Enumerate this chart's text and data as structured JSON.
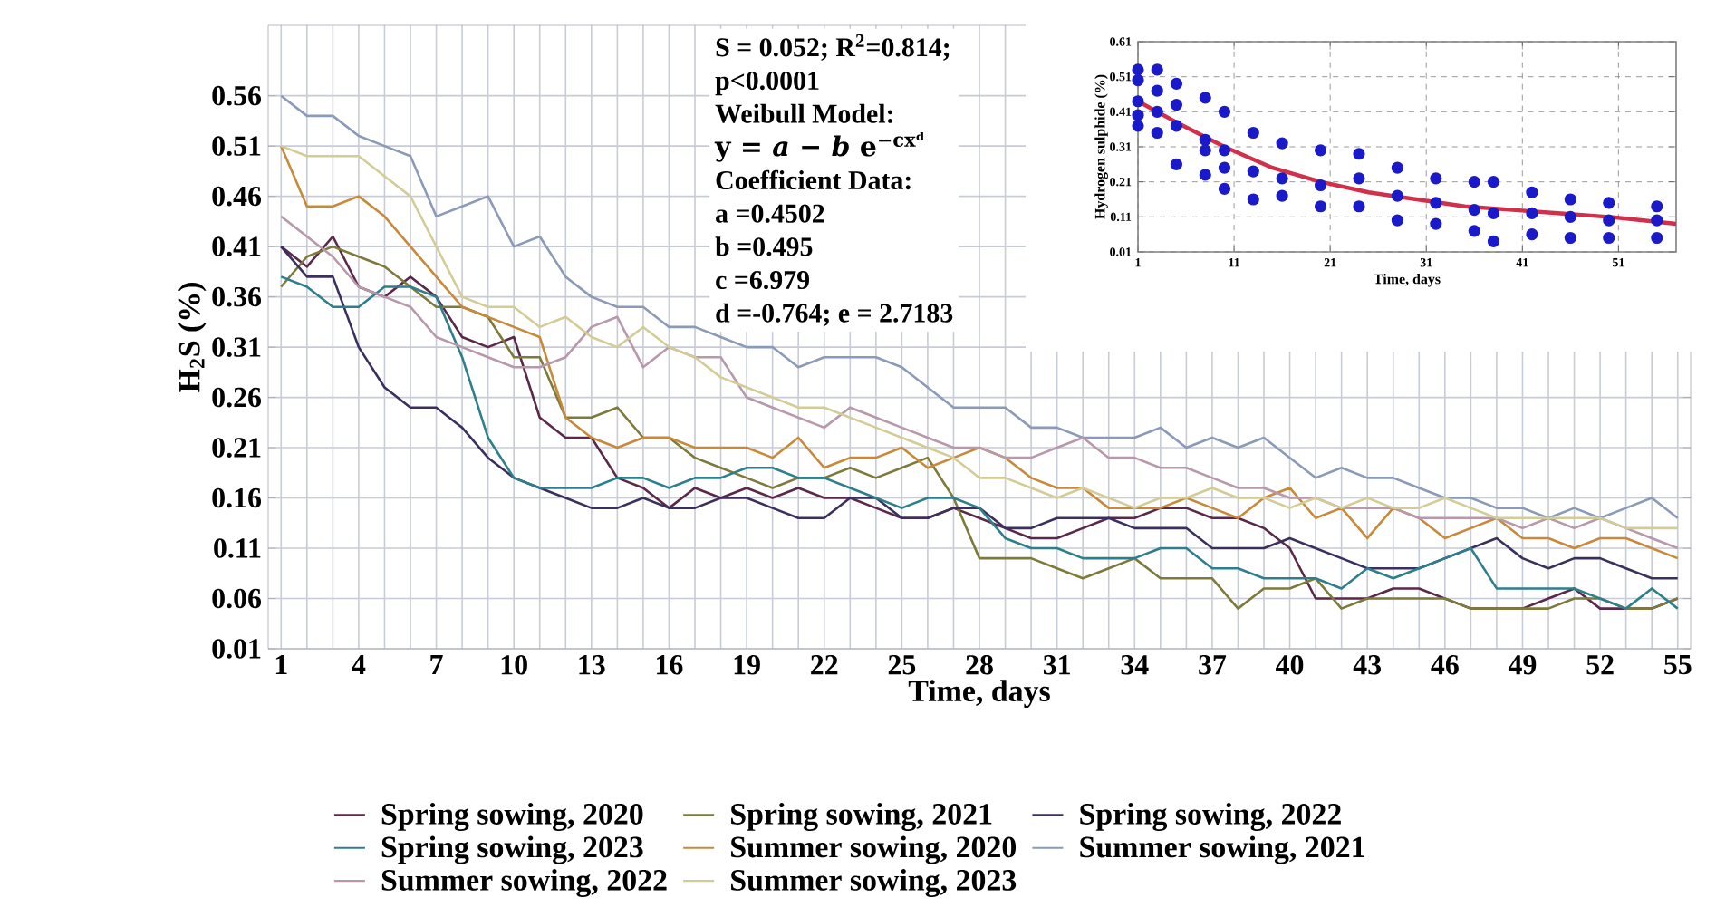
{
  "chart_data": [
    {
      "type": "line",
      "xlabel": "Time, days",
      "ylabel": "H$_{2}$S (%)",
      "x": [
        1,
        2,
        3,
        4,
        5,
        6,
        7,
        8,
        9,
        10,
        11,
        12,
        13,
        14,
        15,
        16,
        17,
        18,
        19,
        20,
        21,
        22,
        23,
        24,
        25,
        26,
        27,
        28,
        29,
        30,
        31,
        32,
        33,
        34,
        35,
        36,
        37,
        38,
        39,
        40,
        41,
        42,
        43,
        44,
        45,
        46,
        47,
        48,
        49,
        50,
        51,
        52,
        53,
        54,
        55
      ],
      "series": [
        {
          "name": "Spring sowing, 2020",
          "color": "#5a2848",
          "values": [
            0.41,
            0.39,
            0.42,
            0.37,
            0.36,
            0.38,
            0.36,
            0.32,
            0.31,
            0.32,
            0.24,
            0.22,
            0.22,
            0.18,
            0.17,
            0.15,
            0.17,
            0.16,
            0.17,
            0.16,
            0.17,
            0.16,
            0.16,
            0.15,
            0.14,
            0.14,
            0.15,
            0.14,
            0.13,
            0.12,
            0.12,
            0.13,
            0.14,
            0.14,
            0.15,
            0.15,
            0.14,
            0.14,
            0.13,
            0.11,
            0.06,
            0.06,
            0.06,
            0.07,
            0.07,
            0.06,
            0.05,
            0.05,
            0.05,
            0.06,
            0.07,
            0.05,
            0.05,
            0.05,
            0.06
          ]
        },
        {
          "name": "Spring sowing, 2021",
          "color": "#7d7a3c",
          "values": [
            0.37,
            0.4,
            0.41,
            0.4,
            0.39,
            0.37,
            0.35,
            0.35,
            0.34,
            0.3,
            0.3,
            0.24,
            0.24,
            0.25,
            0.22,
            0.22,
            0.2,
            0.19,
            0.18,
            0.17,
            0.18,
            0.18,
            0.19,
            0.18,
            0.19,
            0.2,
            0.16,
            0.1,
            0.1,
            0.1,
            0.09,
            0.08,
            0.09,
            0.1,
            0.08,
            0.08,
            0.08,
            0.05,
            0.07,
            0.07,
            0.08,
            0.05,
            0.06,
            0.06,
            0.06,
            0.06,
            0.05,
            0.05,
            0.05,
            0.05,
            0.06,
            0.06,
            0.05,
            0.05,
            0.06
          ]
        },
        {
          "name": "Spring sowing, 2022",
          "color": "#3b2f5e",
          "values": [
            0.41,
            0.38,
            0.38,
            0.31,
            0.27,
            0.25,
            0.25,
            0.23,
            0.2,
            0.18,
            0.17,
            0.16,
            0.15,
            0.15,
            0.16,
            0.15,
            0.15,
            0.16,
            0.16,
            0.15,
            0.14,
            0.14,
            0.16,
            0.16,
            0.14,
            0.14,
            0.15,
            0.15,
            0.13,
            0.13,
            0.14,
            0.14,
            0.14,
            0.13,
            0.13,
            0.13,
            0.11,
            0.11,
            0.11,
            0.12,
            0.11,
            0.1,
            0.09,
            0.09,
            0.09,
            0.1,
            0.11,
            0.12,
            0.1,
            0.09,
            0.1,
            0.1,
            0.09,
            0.08,
            0.08
          ]
        },
        {
          "name": "Spring sowing, 2023",
          "color": "#2e7f8c",
          "values": [
            0.38,
            0.37,
            0.35,
            0.35,
            0.37,
            0.37,
            0.36,
            0.3,
            0.22,
            0.18,
            0.17,
            0.17,
            0.17,
            0.18,
            0.18,
            0.17,
            0.18,
            0.18,
            0.19,
            0.19,
            0.18,
            0.18,
            0.17,
            0.16,
            0.15,
            0.16,
            0.16,
            0.15,
            0.12,
            0.11,
            0.11,
            0.1,
            0.1,
            0.1,
            0.11,
            0.11,
            0.09,
            0.09,
            0.08,
            0.08,
            0.08,
            0.07,
            0.09,
            0.08,
            0.09,
            0.1,
            0.11,
            0.07,
            0.07,
            0.07,
            0.07,
            0.06,
            0.05,
            0.07,
            0.05
          ]
        },
        {
          "name": "Summer sowing, 2020",
          "color": "#c8893a",
          "values": [
            0.51,
            0.45,
            0.45,
            0.46,
            0.44,
            0.41,
            0.38,
            0.35,
            0.34,
            0.33,
            0.32,
            0.24,
            0.22,
            0.21,
            0.22,
            0.22,
            0.21,
            0.21,
            0.21,
            0.2,
            0.22,
            0.19,
            0.2,
            0.2,
            0.21,
            0.19,
            0.2,
            0.21,
            0.2,
            0.18,
            0.17,
            0.17,
            0.15,
            0.15,
            0.15,
            0.16,
            0.15,
            0.14,
            0.16,
            0.17,
            0.14,
            0.15,
            0.12,
            0.15,
            0.14,
            0.12,
            0.13,
            0.14,
            0.12,
            0.12,
            0.11,
            0.12,
            0.12,
            0.11,
            0.1
          ]
        },
        {
          "name": "Summer sowing, 2021",
          "color": "#8a9ab8",
          "values": [
            0.56,
            0.54,
            0.54,
            0.52,
            0.51,
            0.5,
            0.44,
            0.45,
            0.46,
            0.41,
            0.42,
            0.38,
            0.36,
            0.35,
            0.35,
            0.33,
            0.33,
            0.32,
            0.31,
            0.31,
            0.29,
            0.3,
            0.3,
            0.3,
            0.29,
            0.27,
            0.25,
            0.25,
            0.25,
            0.23,
            0.23,
            0.22,
            0.22,
            0.22,
            0.23,
            0.21,
            0.22,
            0.21,
            0.22,
            0.2,
            0.18,
            0.19,
            0.18,
            0.18,
            0.17,
            0.16,
            0.16,
            0.15,
            0.15,
            0.14,
            0.15,
            0.14,
            0.15,
            0.16,
            0.14
          ]
        },
        {
          "name": "Summer sowing, 2022",
          "color": "#b898aa",
          "values": [
            0.44,
            0.42,
            0.4,
            0.37,
            0.36,
            0.35,
            0.32,
            0.31,
            0.3,
            0.29,
            0.29,
            0.3,
            0.33,
            0.34,
            0.29,
            0.31,
            0.3,
            0.3,
            0.26,
            0.25,
            0.24,
            0.23,
            0.25,
            0.24,
            0.23,
            0.22,
            0.21,
            0.21,
            0.2,
            0.2,
            0.21,
            0.22,
            0.2,
            0.2,
            0.19,
            0.19,
            0.18,
            0.17,
            0.17,
            0.16,
            0.16,
            0.15,
            0.15,
            0.15,
            0.14,
            0.14,
            0.14,
            0.14,
            0.13,
            0.14,
            0.13,
            0.14,
            0.13,
            0.12,
            0.11
          ]
        },
        {
          "name": "Summer sowing, 2023",
          "color": "#d4cc96",
          "values": [
            0.51,
            0.5,
            0.5,
            0.5,
            0.48,
            0.46,
            0.41,
            0.36,
            0.35,
            0.35,
            0.33,
            0.34,
            0.32,
            0.31,
            0.33,
            0.31,
            0.3,
            0.28,
            0.27,
            0.26,
            0.25,
            0.25,
            0.24,
            0.23,
            0.22,
            0.21,
            0.2,
            0.18,
            0.18,
            0.17,
            0.16,
            0.17,
            0.16,
            0.15,
            0.16,
            0.16,
            0.17,
            0.16,
            0.16,
            0.15,
            0.16,
            0.15,
            0.16,
            0.15,
            0.15,
            0.16,
            0.15,
            0.14,
            0.14,
            0.14,
            0.14,
            0.14,
            0.13,
            0.13,
            0.13
          ]
        }
      ],
      "xlim": [
        0.5,
        55.5
      ],
      "ylim": [
        0.01,
        0.63
      ],
      "xticks": [
        1,
        {
          "value": 2,
          "label": null
        },
        {
          "value": 3,
          "label": null
        },
        4,
        {
          "value": 5,
          "label": null
        },
        {
          "value": 6,
          "label": null
        },
        7,
        {
          "value": 8,
          "label": null
        },
        {
          "value": 9,
          "label": null
        },
        10,
        {
          "value": 11,
          "label": null
        },
        {
          "value": 12,
          "label": null
        },
        13,
        {
          "value": 14,
          "label": null
        },
        {
          "value": 15,
          "label": null
        },
        16,
        {
          "value": 17,
          "label": null
        },
        {
          "value": 18,
          "label": null
        },
        19,
        {
          "value": 20,
          "label": null
        },
        {
          "value": 21,
          "label": null
        },
        22,
        {
          "value": 23,
          "label": null
        },
        {
          "value": 24,
          "label": null
        },
        25,
        {
          "value": 26,
          "label": null
        },
        {
          "value": 27,
          "label": null
        },
        28,
        {
          "value": 29,
          "label": null
        },
        {
          "value": 30,
          "label": null
        },
        31,
        {
          "value": 32,
          "label": null
        },
        {
          "value": 33,
          "label": null
        },
        34,
        {
          "value": 35,
          "label": null
        },
        {
          "value": 36,
          "label": null
        },
        37,
        {
          "value": 38,
          "label": null
        },
        {
          "value": 39,
          "label": null
        },
        40,
        {
          "value": 41,
          "label": null
        },
        {
          "value": 42,
          "label": null
        },
        43,
        {
          "value": 44,
          "label": null
        },
        {
          "value": 45,
          "label": null
        },
        46,
        {
          "value": 47,
          "label": null
        },
        {
          "value": 48,
          "label": null
        },
        49,
        {
          "value": 50,
          "label": null
        },
        {
          "value": 51,
          "label": null
        },
        52,
        {
          "value": 53,
          "label": null
        },
        {
          "value": 54,
          "label": null
        },
        55
      ],
      "yticks": [
        0.01,
        0.06,
        0.11,
        0.16,
        0.21,
        0.26,
        0.31,
        0.36,
        0.41,
        0.46,
        0.51,
        0.56
      ],
      "grid": true,
      "legend": "bottom",
      "annotations": [
        "S = 0.052; R$^{2}$=0.814;",
        "p<0.0001",
        "Weibull Model:",
        "y = *a* − *b* e$^{−cxᵈ}$",
        "Coefficient Data:",
        "a =0.4502",
        "b =0.495",
        "c =6.979",
        "d =-0.764; e = 2.7183"
      ]
    },
    {
      "type": "scatter",
      "xlabel": "Time, days",
      "ylabel": "Hydrogen sulphide (%)",
      "marker": "circle",
      "series": [
        {
          "color": "#1a1ac8",
          "x": [
            1,
            1,
            1,
            1,
            1,
            3,
            3,
            3,
            3,
            5,
            5,
            5,
            5,
            8,
            8,
            8,
            8,
            10,
            10,
            10,
            10,
            13,
            13,
            13,
            16,
            16,
            16,
            20,
            20,
            20,
            24,
            24,
            24,
            28,
            28,
            28,
            32,
            32,
            32,
            36,
            36,
            36,
            38,
            38,
            38,
            42,
            42,
            42,
            46,
            46,
            46,
            50,
            50,
            50,
            55,
            55,
            55
          ],
          "values": [
            0.53,
            0.5,
            0.44,
            0.4,
            0.37,
            0.53,
            0.47,
            0.41,
            0.35,
            0.49,
            0.43,
            0.37,
            0.26,
            0.45,
            0.33,
            0.3,
            0.23,
            0.41,
            0.3,
            0.25,
            0.19,
            0.35,
            0.24,
            0.16,
            0.32,
            0.22,
            0.17,
            0.3,
            0.2,
            0.14,
            0.29,
            0.22,
            0.14,
            0.25,
            0.17,
            0.1,
            0.22,
            0.15,
            0.09,
            0.21,
            0.13,
            0.07,
            0.21,
            0.12,
            0.04,
            0.18,
            0.12,
            0.06,
            0.16,
            0.11,
            0.05,
            0.15,
            0.1,
            0.05,
            0.14,
            0.1,
            0.05
          ]
        },
        {
          "type": "line",
          "marker": "none",
          "color": "#d0304a",
          "x": [
            1,
            5,
            10,
            15,
            20,
            25,
            30,
            35,
            40,
            45,
            50,
            57
          ],
          "values": [
            0.44,
            0.38,
            0.31,
            0.25,
            0.21,
            0.18,
            0.16,
            0.14,
            0.13,
            0.12,
            0.11,
            0.09
          ]
        }
      ],
      "xlim": [
        1,
        57
      ],
      "ylim": [
        0.01,
        0.61
      ],
      "xticks": [
        1,
        11,
        21,
        31,
        41,
        51
      ],
      "yticks": [
        0.01,
        0.11,
        0.21,
        0.31,
        0.41,
        0.51,
        0.61
      ],
      "grid": true
    }
  ]
}
